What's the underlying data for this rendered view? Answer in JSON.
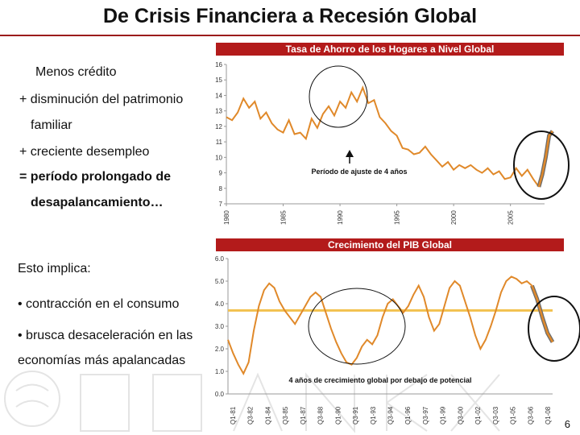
{
  "slide": {
    "title": "De Crisis Financiera a Recesión Global",
    "page_number": "6",
    "colors": {
      "accent": "#b31b1b",
      "series": "#e0892a",
      "potential": "#f2c14e",
      "circle": "#111111"
    }
  },
  "left_text": {
    "line1": "Menos crédito",
    "line2": "+ disminución del patrimonio",
    "line3": "familiar",
    "line4": "+ creciente desempleo",
    "line5": "= período prolongado de",
    "line6": "desapalancamiento…",
    "line7": "Esto implica:",
    "line8": "• contracción en el consumo",
    "line9": "• brusca desaceleración en las",
    "line10": "economías más apalancadas"
  },
  "chart_data": [
    {
      "type": "line",
      "title": "Tasa de Ahorro de los Hogares a Nivel Global",
      "annotation": "Período de ajuste de 4 años",
      "ylim": [
        7,
        16
      ],
      "yticks": [
        "7",
        "8",
        "9",
        "10",
        "11",
        "12",
        "13",
        "14",
        "15",
        "16"
      ],
      "xlim": [
        1980,
        2008
      ],
      "xticks": [
        "1980",
        "1985",
        "1990",
        "1995",
        "2000",
        "2005"
      ],
      "x": [
        1980,
        1980.5,
        1981,
        1981.5,
        1982,
        1982.5,
        1983,
        1983.5,
        1984,
        1984.5,
        1985,
        1985.5,
        1986,
        1986.5,
        1987,
        1987.5,
        1988,
        1988.5,
        1989,
        1989.5,
        1990,
        1990.5,
        1991,
        1991.5,
        1992,
        1992.5,
        1993,
        1993.5,
        1994,
        1994.5,
        1995,
        1995.5,
        1996,
        1996.5,
        1997,
        1997.5,
        1998,
        1998.5,
        1999,
        1999.5,
        2000,
        2000.5,
        2001,
        2001.5,
        2002,
        2002.5,
        2003,
        2003.5,
        2004,
        2004.5,
        2005,
        2005.5,
        2006,
        2006.5,
        2007,
        2007.5
      ],
      "values": [
        12.6,
        12.4,
        12.9,
        13.8,
        13.2,
        13.6,
        12.5,
        12.9,
        12.2,
        11.8,
        11.6,
        12.4,
        11.5,
        11.6,
        11.2,
        12.5,
        11.9,
        12.8,
        13.3,
        12.7,
        13.6,
        13.2,
        14.2,
        13.6,
        14.5,
        13.5,
        13.7,
        12.6,
        12.2,
        11.7,
        11.4,
        10.6,
        10.5,
        10.2,
        10.3,
        10.7,
        10.2,
        9.8,
        9.4,
        9.7,
        9.2,
        9.5,
        9.3,
        9.5,
        9.2,
        9.0,
        9.3,
        8.9,
        9.1,
        8.6,
        8.7,
        9.3,
        8.8,
        9.2,
        8.6,
        8.1
      ],
      "projection": {
        "x": [
          2007.5,
          2007.8,
          2008.1,
          2008.4,
          2008.7
        ],
        "values": [
          8.1,
          8.9,
          10.0,
          11.4,
          11.7
        ]
      }
    },
    {
      "type": "line",
      "title": "Crecimiento del PIB Global",
      "annotation": "4 años de crecimiento global por debajo de potencial",
      "ylim": [
        0,
        6
      ],
      "yticks": [
        "0.0",
        "1.0",
        "2.0",
        "3.0",
        "4.0",
        "5.0",
        "6.0"
      ],
      "xticks": [
        "Q1-81",
        "Q3-82",
        "Q1-84",
        "Q3-85",
        "Q1-87",
        "Q3-88",
        "Q1-90",
        "Q3-91",
        "Q1-93",
        "Q3-94",
        "Q1-96",
        "Q3-97",
        "Q1-99",
        "Q3-00",
        "Q1-02",
        "Q3-03",
        "Q1-05",
        "Q3-06",
        "Q1-08"
      ],
      "potential": 3.7,
      "values": [
        2.4,
        1.8,
        1.3,
        0.9,
        1.4,
        2.8,
        3.9,
        4.6,
        4.9,
        4.7,
        4.1,
        3.7,
        3.4,
        3.1,
        3.5,
        3.9,
        4.3,
        4.5,
        4.3,
        3.6,
        2.9,
        2.3,
        1.8,
        1.4,
        1.3,
        1.6,
        2.1,
        2.4,
        2.2,
        2.6,
        3.4,
        4.0,
        4.2,
        3.9,
        3.6,
        3.9,
        4.4,
        4.8,
        4.3,
        3.4,
        2.8,
        3.1,
        3.9,
        4.7,
        5.0,
        4.8,
        4.1,
        3.4,
        2.6,
        2.0,
        2.4,
        3.0,
        3.7,
        4.5,
        5.0,
        5.2,
        5.1,
        4.9,
        5.0,
        4.8
      ],
      "projection": {
        "values": [
          4.8,
          4.2,
          3.4,
          2.7,
          2.3
        ]
      }
    }
  ]
}
